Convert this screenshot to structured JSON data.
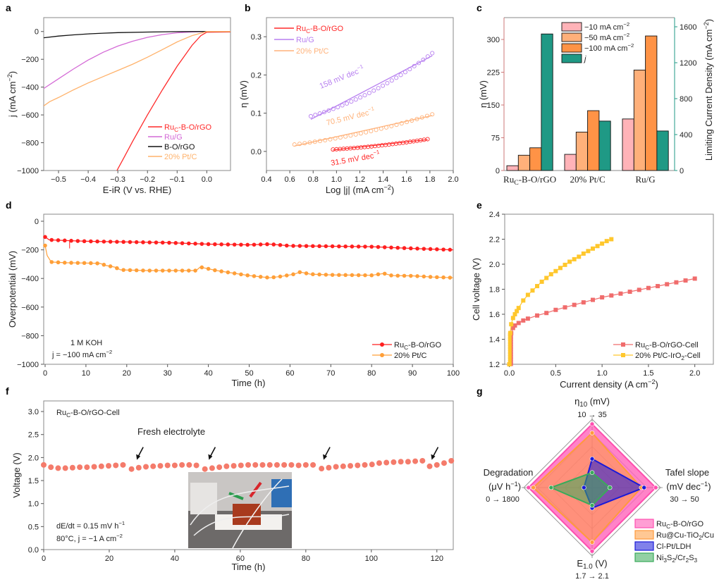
{
  "chart_data": [
    {
      "panel": "a",
      "type": "line",
      "xlabel": "E-iR (V vs. RHE)",
      "ylabel": "j (mA cm−2)",
      "xlim": [
        -0.55,
        0.08
      ],
      "ylim": [
        -1000,
        100
      ],
      "xticks": [
        -0.5,
        -0.4,
        -0.3,
        -0.2,
        -0.1,
        0.0
      ],
      "xtick_labels": [
        "−0.5",
        "−0.4",
        "−0.3",
        "−0.2",
        "−0.1",
        "0.0"
      ],
      "yticks": [
        0,
        -200,
        -400,
        -600,
        -800,
        -1000
      ],
      "ytick_labels": [
        "0",
        "−200",
        "−400",
        "−600",
        "−800",
        "−1000"
      ],
      "legend_position": "bottom-right",
      "series": [
        {
          "name": "RuC-B-O/rGO",
          "color": "#ff2a2a",
          "x": [
            -0.303,
            -0.28,
            -0.25,
            -0.2,
            -0.15,
            -0.1,
            -0.05,
            -0.02,
            0.0,
            0.08
          ],
          "y": [
            -1000,
            -910,
            -790,
            -600,
            -420,
            -250,
            -100,
            -30,
            -5,
            -3
          ]
        },
        {
          "name": "Ru/G",
          "color": "#d46ad6",
          "x": [
            -0.55,
            -0.5,
            -0.45,
            -0.4,
            -0.35,
            -0.3,
            -0.25,
            -0.2,
            -0.15,
            -0.1,
            -0.05,
            0.0,
            0.08
          ],
          "y": [
            -410,
            -340,
            -270,
            -205,
            -150,
            -105,
            -70,
            -42,
            -22,
            -9,
            -3,
            0,
            0
          ]
        },
        {
          "name": "B-O/rGO",
          "color": "#111111",
          "x": [
            -0.55,
            -0.5,
            -0.45,
            -0.4,
            -0.35,
            -0.3,
            -0.2,
            -0.1,
            0.0,
            0.08
          ],
          "y": [
            -45,
            -33,
            -24,
            -17,
            -12,
            -8,
            -4,
            -1,
            0,
            0
          ]
        },
        {
          "name": "20% Pt/C",
          "color": "#ffb26b",
          "x": [
            -0.55,
            -0.53,
            -0.5,
            -0.45,
            -0.4,
            -0.35,
            -0.3,
            -0.25,
            -0.2,
            -0.15,
            -0.1,
            -0.05,
            0.0,
            0.08
          ],
          "y": [
            -535,
            -505,
            -475,
            -420,
            -370,
            -325,
            -280,
            -235,
            -185,
            -130,
            -75,
            -30,
            0,
            0
          ]
        }
      ]
    },
    {
      "panel": "b",
      "type": "scatter",
      "xlabel": "Log |j| (mA cm−2)",
      "ylabel": "η (mV)",
      "xlim": [
        0.4,
        2.0
      ],
      "ylim": [
        -0.05,
        0.35
      ],
      "xticks": [
        0.4,
        0.6,
        0.8,
        1.0,
        1.2,
        1.4,
        1.6,
        1.8,
        2.0
      ],
      "xtick_labels": [
        "0.4",
        "0.6",
        "0.8",
        "1.0",
        "1.2",
        "1.4",
        "1.6",
        "1.8",
        "2.0"
      ],
      "yticks": [
        0.0,
        0.1,
        0.2,
        0.3
      ],
      "ytick_labels": [
        "0.0",
        "0.1",
        "0.2",
        "0.3"
      ],
      "legend_position": "top-left",
      "series": [
        {
          "name": "RuC-B-O/rGO",
          "color": "#ff2a2a",
          "x_range": [
            0.97,
            1.78
          ],
          "y_range": [
            0.005,
            0.032
          ],
          "fit_label": "31.5 mV dec−1"
        },
        {
          "name": "Ru/G",
          "color": "#b77ff0",
          "x_range": [
            0.78,
            1.82
          ],
          "y_range": [
            0.092,
            0.257
          ],
          "fit_label": "158 mV dec−1"
        },
        {
          "name": "20% Pt/C",
          "color": "#ffb27a",
          "x_range": [
            0.64,
            1.82
          ],
          "y_range": [
            0.018,
            0.097
          ],
          "fit_label": "70.5 mV dec−1"
        }
      ]
    },
    {
      "panel": "c",
      "type": "bar",
      "categories": [
        "RuC-B-O/rGO",
        "20% Pt/C",
        "Ru/G"
      ],
      "ylabel": "η (mV)",
      "ylabel_right": "Limiting Current Density (mA cm−2)",
      "ylim": [
        0,
        340
      ],
      "ylim_right": [
        0,
        1700
      ],
      "yticks": [
        0,
        75,
        150,
        225,
        300
      ],
      "yticks_right": [
        0,
        400,
        800,
        1200,
        1600
      ],
      "legend_position": "top-center",
      "series": [
        {
          "name": "−10 mA cm−2",
          "color": "#ffb3b8",
          "axis": "left",
          "values": [
            11,
            37,
            118
          ]
        },
        {
          "name": "−50 mA cm−2",
          "color": "#ffb07a",
          "axis": "left",
          "values": [
            35,
            88,
            230
          ]
        },
        {
          "name": "−100 mA cm−2",
          "color": "#ff9346",
          "axis": "left",
          "values": [
            52,
            137,
            308
          ]
        },
        {
          "name": "j",
          "color": "#1f9985",
          "axis": "right",
          "values": [
            1520,
            550,
            440
          ]
        }
      ]
    },
    {
      "panel": "d",
      "type": "line",
      "xlabel": "Time (h)",
      "ylabel": "Overpotential (mV)",
      "xlim": [
        0,
        100
      ],
      "ylim": [
        -1000,
        20
      ],
      "xticks": [
        0,
        10,
        20,
        30,
        40,
        50,
        60,
        70,
        80,
        90,
        100
      ],
      "yticks": [
        0,
        -200,
        -400,
        -600,
        -800,
        -1000
      ],
      "ytick_labels": [
        "0",
        "−200",
        "−400",
        "−600",
        "−800",
        "−1000"
      ],
      "annotations": [
        "1 M KOH",
        "j = −100 mA cm−2"
      ],
      "legend_position": "bottom-right",
      "series": [
        {
          "name": "RuC-B-O/rGO",
          "color": "#ff1f1f",
          "x": [
            0,
            1,
            5,
            10,
            20,
            30,
            40,
            50,
            55,
            60,
            70,
            80,
            90,
            100
          ],
          "y": [
            -110,
            -130,
            -135,
            -140,
            -145,
            -150,
            -160,
            -165,
            -160,
            -172,
            -175,
            -178,
            -190,
            -200
          ]
        },
        {
          "name": "20% Pt/C",
          "color": "#ff9f38",
          "x": [
            0,
            0.5,
            1.5,
            5,
            10,
            13.5,
            15,
            17,
            18.5,
            25,
            30,
            37,
            38,
            42,
            50,
            55,
            58,
            61,
            62.5,
            65,
            70,
            80,
            83,
            85,
            90,
            95,
            100
          ],
          "y": [
            -170,
            -240,
            -285,
            -290,
            -292,
            -295,
            -310,
            -320,
            -340,
            -345,
            -345,
            -345,
            -320,
            -345,
            -380,
            -395,
            -385,
            -370,
            -355,
            -370,
            -375,
            -378,
            -365,
            -380,
            -382,
            -390,
            -395
          ]
        }
      ]
    },
    {
      "panel": "e",
      "type": "scatter",
      "xlabel": "Current density (A cm−2)",
      "ylabel": "Cell voltage (V)",
      "xlim": [
        -0.05,
        2.2
      ],
      "ylim": [
        1.2,
        2.4
      ],
      "xticks": [
        0.0,
        0.5,
        1.0,
        1.5,
        2.0
      ],
      "xtick_labels": [
        "0.0",
        "0.5",
        "1.0",
        "1.5",
        "2.0"
      ],
      "yticks": [
        1.2,
        1.4,
        1.6,
        1.8,
        2.0,
        2.2,
        2.4
      ],
      "ytick_labels": [
        "1.2",
        "1.4",
        "1.6",
        "1.8",
        "2.0",
        "2.2",
        "2.4"
      ],
      "legend_position": "bottom-right",
      "series": [
        {
          "name": "RuC-B-O/rGO-Cell",
          "color": "#f06c6c",
          "x": [
            0.0,
            0.02,
            0.04,
            0.06,
            0.1,
            0.15,
            0.2,
            0.3,
            0.4,
            0.5,
            0.6,
            0.7,
            0.8,
            0.9,
            1.0,
            1.1,
            1.2,
            1.3,
            1.4,
            1.5,
            1.6,
            1.7,
            1.8,
            1.9,
            2.0
          ],
          "y": [
            1.2,
            1.45,
            1.49,
            1.51,
            1.53,
            1.55,
            1.565,
            1.59,
            1.61,
            1.635,
            1.655,
            1.675,
            1.695,
            1.715,
            1.735,
            1.75,
            1.765,
            1.78,
            1.795,
            1.81,
            1.825,
            1.84,
            1.855,
            1.87,
            1.885
          ]
        },
        {
          "name": "20% Pt/C-IrO2-Cell",
          "color": "#ffc72c",
          "x": [
            0.0,
            0.01,
            0.02,
            0.04,
            0.06,
            0.08,
            0.1,
            0.15,
            0.2,
            0.25,
            0.3,
            0.35,
            0.4,
            0.45,
            0.5,
            0.55,
            0.6,
            0.65,
            0.7,
            0.75,
            0.8,
            0.85,
            0.9,
            0.95,
            1.0,
            1.05,
            1.1
          ],
          "y": [
            1.2,
            1.45,
            1.52,
            1.57,
            1.6,
            1.625,
            1.65,
            1.71,
            1.755,
            1.79,
            1.825,
            1.86,
            1.89,
            1.92,
            1.945,
            1.97,
            1.995,
            2.02,
            2.04,
            2.06,
            2.085,
            2.105,
            2.125,
            2.145,
            2.165,
            2.185,
            2.2
          ]
        }
      ]
    },
    {
      "panel": "f",
      "type": "scatter",
      "xlabel": "Time (h)",
      "ylabel": "Voltage (V)",
      "xlim": [
        0,
        125
      ],
      "ylim": [
        0,
        3.2
      ],
      "xticks": [
        0,
        20,
        40,
        60,
        80,
        100,
        120
      ],
      "yticks": [
        0.0,
        0.5,
        1.0,
        1.5,
        2.0,
        2.5,
        3.0
      ],
      "ytick_labels": [
        "0.0",
        "0.5",
        "1.0",
        "1.5",
        "2.0",
        "2.5",
        "3.0"
      ],
      "annotations": [
        "RuC-B-O/rGO-Cell",
        "Fresh electrolyte",
        "dE/dt = 0.15 mV h−1",
        "80°C, j = −1 A cm−2"
      ],
      "arrow_times": [
        28,
        50,
        85,
        118
      ],
      "series": [
        {
          "name": "RuC-B-O/rGO-Cell",
          "color": "#f47b6b",
          "x": [
            0,
            2.2,
            4.4,
            6.6,
            8.8,
            11,
            13.2,
            15.4,
            17.6,
            19.8,
            22,
            24.2,
            26.8,
            29,
            31.2,
            33.4,
            35.6,
            37.8,
            40,
            42.2,
            44.4,
            46.6,
            49.2,
            51.4,
            53.6,
            55.8,
            58,
            60.2,
            62.4,
            64.6,
            66.8,
            69,
            71.2,
            73.4,
            75.6,
            77.8,
            80,
            82.2,
            84.8,
            87,
            89.2,
            91.4,
            93.6,
            95.8,
            98,
            100.2,
            102.4,
            104.6,
            106.8,
            109,
            111.2,
            113.4,
            115.6,
            117.8,
            120,
            122.2,
            124.4
          ],
          "y": [
            1.84,
            1.79,
            1.77,
            1.77,
            1.78,
            1.79,
            1.79,
            1.8,
            1.81,
            1.82,
            1.83,
            1.84,
            1.75,
            1.78,
            1.8,
            1.81,
            1.82,
            1.83,
            1.83,
            1.84,
            1.84,
            1.83,
            1.75,
            1.77,
            1.79,
            1.81,
            1.82,
            1.83,
            1.84,
            1.84,
            1.84,
            1.84,
            1.84,
            1.84,
            1.84,
            1.83,
            1.84,
            1.84,
            1.76,
            1.78,
            1.8,
            1.81,
            1.82,
            1.83,
            1.84,
            1.85,
            1.88,
            1.89,
            1.9,
            1.91,
            1.91,
            1.92,
            1.93,
            1.81,
            1.84,
            1.88,
            1.93
          ]
        }
      ]
    },
    {
      "panel": "g",
      "type": "radar",
      "axes": [
        {
          "name": "η10 (mV)",
          "range": "10 → 35"
        },
        {
          "name": "Tafel slope (mV dec−1)",
          "range": "30 → 50"
        },
        {
          "name": "E1.0 (V)",
          "range": "1.7 → 2.1"
        },
        {
          "name": "Degradation (μV h−1)",
          "range": "0 → 1800"
        }
      ],
      "scale": "normalized score 0–1 (outer ring = best)",
      "rings": 5,
      "legend_position": "bottom-right",
      "series": [
        {
          "name": "RuC-B-O/rGO",
          "color": "#ff4fb0",
          "values": [
            0.93,
            0.93,
            0.93,
            0.93
          ]
        },
        {
          "name": "Ru@Cu-TiO2/Cu",
          "color": "#ff9a3c",
          "values": [
            0.8,
            0.72,
            0.8,
            0.86
          ]
        },
        {
          "name": "Cl-Pt/LDH",
          "color": "#1a1ad9",
          "values": [
            0.42,
            0.76,
            0.3,
            0.12
          ]
        },
        {
          "name": "Ni3S2/Cr2S3",
          "color": "#3aaa5a",
          "values": [
            0.22,
            0.26,
            0.26,
            0.6
          ]
        }
      ]
    }
  ],
  "panel_labels": [
    "a",
    "b",
    "c",
    "d",
    "e",
    "f",
    "g"
  ],
  "legends": {
    "a": [
      "RuC-B-O/rGO",
      "Ru/G",
      "B-O/rGO",
      "20% Pt/C"
    ],
    "b": [
      "RuC-B-O/rGO",
      "Ru/G",
      "20% Pt/C"
    ],
    "c": [
      "−10 mA cm−2",
      "−50 mA cm−2",
      "−100 mA cm−2",
      "j"
    ],
    "d": [
      "RuC-B-O/rGO",
      "20% Pt/C"
    ],
    "e": [
      "RuC-B-O/rGO-Cell",
      "20% Pt/C-IrO2-Cell"
    ],
    "g": [
      "RuC-B-O/rGO",
      "Ru@Cu-TiO2/Cu",
      "Cl-Pt/LDH",
      "Ni3S2/Cr2S3"
    ]
  },
  "inset_photo": {
    "description": "photo of electrolyzer cell with red and green clips"
  }
}
